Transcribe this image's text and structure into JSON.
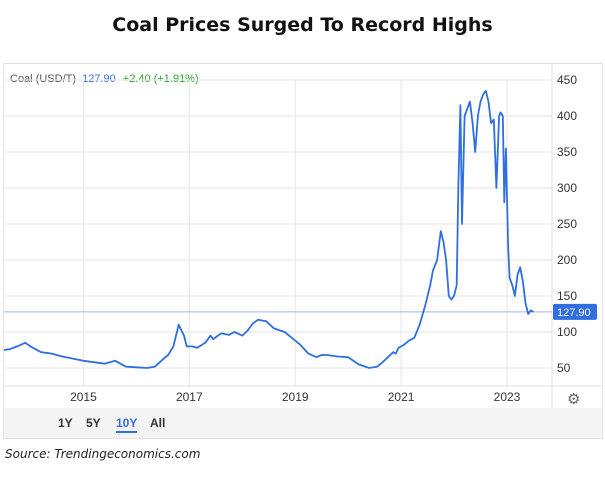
{
  "page": {
    "title": "Coal Prices Surged To Record Highs",
    "source": "Source: Trendingeconomics.com"
  },
  "quote": {
    "name": "Coal (USD/T)",
    "price": "127.90",
    "change": "+2.40 (+1.91%)",
    "last_label": "127.90"
  },
  "range_buttons": [
    "1Y",
    "5Y",
    "10Y",
    "All"
  ],
  "active_range": "10Y",
  "colors": {
    "line": "#2f6fe0",
    "positive": "#2aa12a",
    "grid": "#e6e6e6"
  },
  "chart_data": {
    "type": "line",
    "title": "Coal Prices Surged To Record Highs",
    "xlabel": "",
    "ylabel": "",
    "ylim": [
      25,
      450
    ],
    "xlim": [
      2013.5,
      2023.85
    ],
    "yticks": [
      50,
      100,
      150,
      200,
      250,
      300,
      350,
      400,
      450
    ],
    "xticks": [
      2015,
      2017,
      2019,
      2021,
      2023
    ],
    "xtick_labels": [
      "2015",
      "2017",
      "2019",
      "2021",
      "2023"
    ],
    "grid": true,
    "last_value": 127.9,
    "series": [
      {
        "name": "Coal (USD/T)",
        "x": [
          2013.5,
          2013.6,
          2013.75,
          2013.9,
          2014.0,
          2014.2,
          2014.4,
          2014.6,
          2014.8,
          2015.0,
          2015.2,
          2015.4,
          2015.6,
          2015.8,
          2016.0,
          2016.2,
          2016.35,
          2016.5,
          2016.6,
          2016.7,
          2016.8,
          2016.9,
          2016.95,
          2017.05,
          2017.15,
          2017.3,
          2017.4,
          2017.45,
          2017.6,
          2017.75,
          2017.85,
          2018.0,
          2018.1,
          2018.2,
          2018.3,
          2018.45,
          2018.6,
          2018.8,
          2019.0,
          2019.1,
          2019.25,
          2019.4,
          2019.5,
          2019.6,
          2019.8,
          2020.0,
          2020.2,
          2020.4,
          2020.55,
          2020.65,
          2020.75,
          2020.85,
          2020.9,
          2020.95,
          2021.05,
          2021.15,
          2021.25,
          2021.35,
          2021.45,
          2021.55,
          2021.6,
          2021.68,
          2021.75,
          2021.8,
          2021.85,
          2021.9,
          2021.95,
          2022.0,
          2022.05,
          2022.08,
          2022.12,
          2022.15,
          2022.2,
          2022.25,
          2022.3,
          2022.35,
          2022.4,
          2022.45,
          2022.5,
          2022.55,
          2022.6,
          2022.65,
          2022.7,
          2022.75,
          2022.8,
          2022.85,
          2022.88,
          2022.92,
          2022.95,
          2022.98,
          2023.02,
          2023.05,
          2023.1,
          2023.15,
          2023.2,
          2023.25,
          2023.3,
          2023.35,
          2023.4,
          2023.45,
          2023.5
        ],
        "values": [
          75,
          76,
          80,
          85,
          80,
          72,
          70,
          66,
          63,
          60,
          58,
          56,
          60,
          52,
          51,
          50,
          52,
          62,
          68,
          80,
          110,
          95,
          80,
          80,
          78,
          85,
          95,
          90,
          98,
          96,
          100,
          95,
          102,
          112,
          117,
          115,
          105,
          100,
          88,
          82,
          70,
          65,
          68,
          68,
          66,
          65,
          55,
          50,
          52,
          58,
          65,
          72,
          70,
          78,
          82,
          88,
          92,
          110,
          135,
          165,
          185,
          200,
          240,
          225,
          200,
          150,
          145,
          150,
          165,
          300,
          415,
          250,
          400,
          410,
          420,
          390,
          350,
          400,
          420,
          430,
          435,
          420,
          390,
          395,
          300,
          400,
          405,
          400,
          280,
          355,
          220,
          175,
          165,
          150,
          180,
          190,
          170,
          140,
          125,
          130,
          127.9
        ]
      }
    ]
  }
}
